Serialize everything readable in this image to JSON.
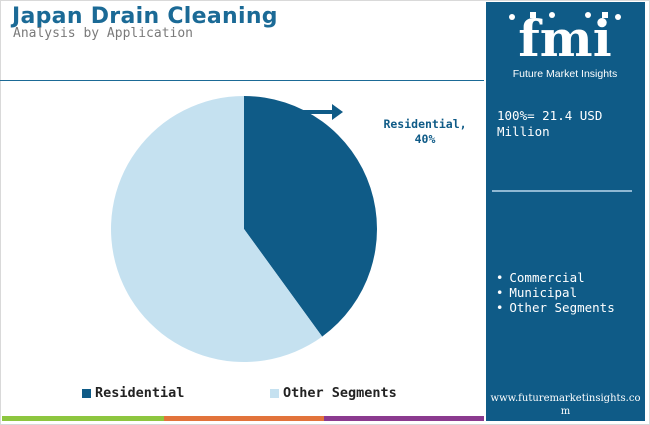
{
  "header": {
    "title": "Japan Drain Cleaning",
    "subtitle": "Analysis by Application"
  },
  "chart_data": {
    "type": "pie",
    "categories": [
      "Residential",
      "Other Segments"
    ],
    "values": [
      40,
      60
    ],
    "unit": "%",
    "colors": [
      "#0f5b87",
      "#c5e1f0"
    ],
    "callout": {
      "category": "Residential",
      "text": "Residential, 40%"
    },
    "legend": {
      "placement": "bottom",
      "items": [
        "Residential",
        "Other Segments"
      ]
    }
  },
  "sidebar": {
    "logo": {
      "letters": "fmi",
      "tagline": "Future Market Insights"
    },
    "total_text": "100%= 21.4 USD Million",
    "other_segments": [
      "Commercial",
      "Municipal",
      "Other Segments"
    ],
    "website": "www.futuremarketinsights.com"
  },
  "colors": {
    "title": "#1b6a96",
    "sidebar": "#0f5b87",
    "accent_green": "#8dc63f",
    "accent_orange": "#e2733b",
    "accent_purple": "#8b3a8f"
  }
}
